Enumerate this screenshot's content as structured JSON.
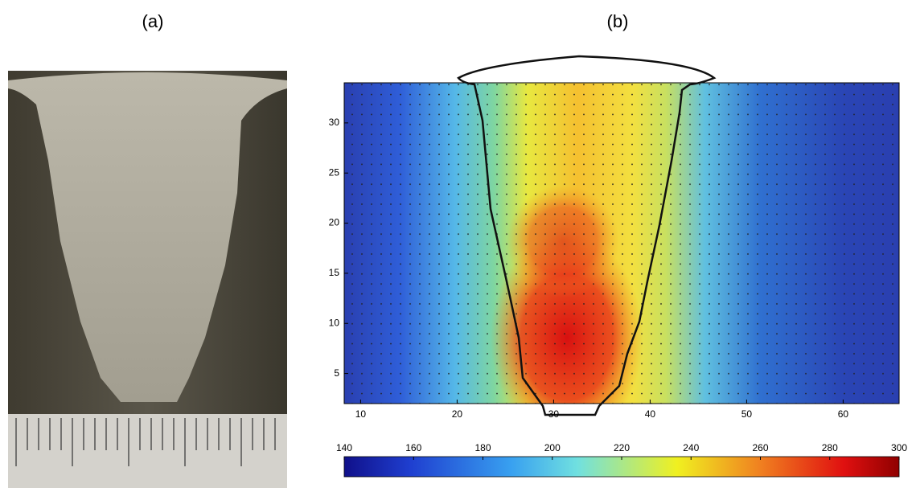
{
  "panels": {
    "a": {
      "label": "(a)"
    },
    "b": {
      "label": "(b)",
      "xlim": [
        8.3,
        65.8
      ],
      "ylim": [
        2,
        34
      ],
      "xticks": [
        10,
        20,
        30,
        40,
        50,
        60
      ],
      "yticks": [
        5,
        10,
        15,
        20,
        25,
        30
      ],
      "colorbar": {
        "lim": [
          140,
          300
        ],
        "ticks": [
          140,
          160,
          180,
          200,
          220,
          240,
          260,
          280,
          300
        ]
      }
    }
  }
}
